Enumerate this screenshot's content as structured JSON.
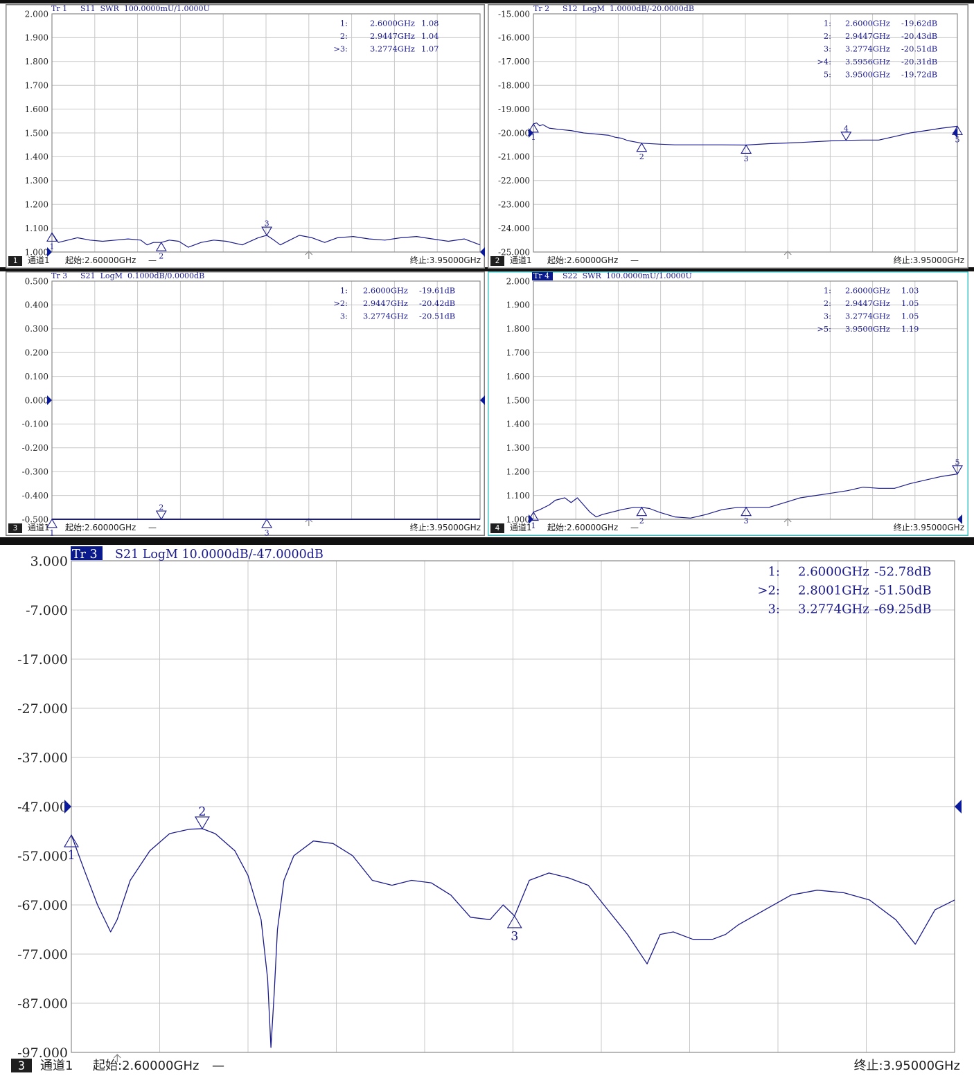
{
  "panels": [
    {
      "id": "p1",
      "trace_tag": "Tr 1",
      "trace_tag_active": false,
      "title": "S11  SWR  100.0000mU/1.0000U",
      "channel_num": "1",
      "channel_label": "通道1",
      "start_label": "起始:2.60000GHz",
      "start_dash": "—",
      "stop_label": "终止:3.95000GHz",
      "frame_color": "#7f7f7f",
      "y_ticks": [
        "2.000",
        "1.900",
        "1.800",
        "1.700",
        "1.600",
        "1.500",
        "1.400",
        "1.300",
        "1.200",
        "1.100",
        "1.000"
      ],
      "marker_table": [
        {
          "label": "1:",
          "freq": "2.6000GHz",
          "value": "1.08"
        },
        {
          "label": "2:",
          "freq": "2.9447GHz",
          "value": "1.04"
        },
        {
          "label": ">3:",
          "freq": "3.2774GHz",
          "value": "1.07"
        }
      ]
    },
    {
      "id": "p2",
      "trace_tag": "Tr 2",
      "trace_tag_active": false,
      "title": "S12  LogM  1.0000dB/-20.0000dB",
      "channel_num": "2",
      "channel_label": "通道1",
      "start_label": "起始:2.60000GHz",
      "start_dash": "—",
      "stop_label": "终止:3.95000GHz",
      "frame_color": "#7f7f7f",
      "y_ticks": [
        "-15.000",
        "-16.000",
        "-17.000",
        "-18.000",
        "-19.000",
        "-20.000",
        "-21.000",
        "-22.000",
        "-23.000",
        "-24.000",
        "-25.000"
      ],
      "marker_table": [
        {
          "label": "1:",
          "freq": "2.6000GHz",
          "value": "-19.62dB"
        },
        {
          "label": "2:",
          "freq": "2.9447GHz",
          "value": "-20.43dB"
        },
        {
          "label": "3:",
          "freq": "3.2774GHz",
          "value": "-20.51dB"
        },
        {
          "label": ">4:",
          "freq": "3.5956GHz",
          "value": "-20.31dB"
        },
        {
          "label": "5:",
          "freq": "3.9500GHz",
          "value": "-19.72dB"
        }
      ]
    },
    {
      "id": "p3",
      "trace_tag": "Tr 3",
      "trace_tag_active": false,
      "title": "S21  LogM  0.1000dB/0.0000dB",
      "channel_num": "3",
      "channel_label": "通道1",
      "start_label": "起始:2.60000GHz",
      "start_dash": "—",
      "stop_label": "终止:3.95000GHz",
      "frame_color": "#7f7f7f",
      "y_ticks": [
        "0.500",
        "0.400",
        "0.300",
        "0.200",
        "0.100",
        "0.000",
        "-0.100",
        "-0.200",
        "-0.300",
        "-0.400",
        "-0.500"
      ],
      "marker_table": [
        {
          "label": "1:",
          "freq": "2.6000GHz",
          "value": "-19.61dB"
        },
        {
          "label": ">2:",
          "freq": "2.9447GHz",
          "value": "-20.42dB"
        },
        {
          "label": "3:",
          "freq": "3.2774GHz",
          "value": "-20.51dB"
        }
      ]
    },
    {
      "id": "p4",
      "trace_tag": "Tr 4",
      "trace_tag_active": true,
      "title": "S22  SWR  100.0000mU/1.0000U",
      "channel_num": "4",
      "channel_label": "通道1",
      "start_label": "起始:2.60000GHz",
      "start_dash": "—",
      "stop_label": "终止:3.95000GHz",
      "frame_color": "#3fbfbf",
      "y_ticks": [
        "2.000",
        "1.900",
        "1.800",
        "1.700",
        "1.600",
        "1.500",
        "1.400",
        "1.300",
        "1.200",
        "1.100",
        "1.000"
      ],
      "marker_table": [
        {
          "label": "1:",
          "freq": "2.6000GHz",
          "value": "1.03"
        },
        {
          "label": "2:",
          "freq": "2.9447GHz",
          "value": "1.05"
        },
        {
          "label": "3:",
          "freq": "3.2774GHz",
          "value": "1.05"
        },
        {
          "label": ">5:",
          "freq": "3.9500GHz",
          "value": "1.19"
        }
      ]
    },
    {
      "id": "p5",
      "trace_tag": "Tr 3",
      "trace_tag_active": true,
      "title": "S21 LogM 10.0000dB/-47.0000dB",
      "channel_num": "3",
      "channel_label": "通道1",
      "start_label": "起始:2.60000GHz",
      "start_dash": "—",
      "stop_label": "终止:3.95000GHz",
      "frame_color": "#ffffff",
      "y_ticks": [
        "3.000",
        "-7.000",
        "-17.000",
        "-27.000",
        "-37.000",
        "-47.000",
        "-57.000",
        "-67.000",
        "-77.000",
        "-87.000",
        "-97.000"
      ],
      "marker_table": [
        {
          "label": "1:",
          "freq": "2.6000GHz",
          "value": "-52.78dB"
        },
        {
          "label": ">2:",
          "freq": "2.8001GHz",
          "value": "-51.50dB"
        },
        {
          "label": "3:",
          "freq": "3.2774GHz",
          "value": "-69.25dB"
        }
      ]
    }
  ],
  "chart_data": [
    {
      "type": "line",
      "panel": "p1",
      "title": "S11  SWR  100.0000mU/1.0000U",
      "xlim": [
        2.6,
        3.95
      ],
      "ylim": [
        1.0,
        2.0
      ],
      "grid": true,
      "x": [
        2.6,
        2.62,
        2.65,
        2.68,
        2.72,
        2.76,
        2.8,
        2.84,
        2.88,
        2.9,
        2.92,
        2.9447,
        2.97,
        3.0,
        3.03,
        3.07,
        3.11,
        3.15,
        3.2,
        3.25,
        3.2774,
        3.3,
        3.32,
        3.35,
        3.38,
        3.42,
        3.46,
        3.5,
        3.55,
        3.6,
        3.65,
        3.7,
        3.75,
        3.8,
        3.85,
        3.9,
        3.93,
        3.95
      ],
      "y": [
        1.08,
        1.04,
        1.05,
        1.06,
        1.05,
        1.045,
        1.05,
        1.055,
        1.05,
        1.03,
        1.04,
        1.04,
        1.05,
        1.045,
        1.02,
        1.04,
        1.05,
        1.045,
        1.03,
        1.06,
        1.07,
        1.05,
        1.03,
        1.05,
        1.07,
        1.06,
        1.04,
        1.06,
        1.065,
        1.055,
        1.05,
        1.06,
        1.065,
        1.055,
        1.045,
        1.055,
        1.04,
        1.03
      ],
      "markers": [
        {
          "name": "1",
          "x": 2.6,
          "y": 1.08
        },
        {
          "name": "2",
          "x": 2.9447,
          "y": 1.04
        },
        {
          "name": "3",
          "x": 3.2774,
          "y": 1.07
        }
      ]
    },
    {
      "type": "line",
      "panel": "p2",
      "title": "S12  LogM  1.0000dB/-20.0000dB",
      "xlim": [
        2.6,
        3.95
      ],
      "ylim": [
        -25.0,
        -15.0
      ],
      "grid": true,
      "x": [
        2.6,
        2.61,
        2.62,
        2.63,
        2.65,
        2.68,
        2.72,
        2.76,
        2.8,
        2.84,
        2.86,
        2.88,
        2.9,
        2.9447,
        3.0,
        3.05,
        3.1,
        3.15,
        3.2,
        3.2774,
        3.35,
        3.45,
        3.55,
        3.5956,
        3.65,
        3.7,
        3.75,
        3.8,
        3.85,
        3.9,
        3.95
      ],
      "y": [
        -19.62,
        -19.58,
        -19.7,
        -19.65,
        -19.8,
        -19.85,
        -19.9,
        -20.0,
        -20.05,
        -20.1,
        -20.18,
        -20.22,
        -20.32,
        -20.43,
        -20.47,
        -20.5,
        -20.5,
        -20.5,
        -20.5,
        -20.51,
        -20.45,
        -20.4,
        -20.33,
        -20.31,
        -20.3,
        -20.3,
        -20.15,
        -20.0,
        -19.9,
        -19.8,
        -19.72
      ],
      "markers": [
        {
          "name": "1",
          "x": 2.6,
          "y": -19.62
        },
        {
          "name": "2",
          "x": 2.9447,
          "y": -20.43
        },
        {
          "name": "3",
          "x": 3.2774,
          "y": -20.51
        },
        {
          "name": "4",
          "x": 3.5956,
          "y": -20.31
        },
        {
          "name": "5",
          "x": 3.95,
          "y": -19.72
        }
      ]
    },
    {
      "type": "line",
      "panel": "p3",
      "title": "S21  LogM  0.1000dB/0.0000dB",
      "xlim": [
        2.6,
        3.95
      ],
      "ylim": [
        -0.5,
        0.5
      ],
      "grid": true,
      "x": [
        2.6,
        3.95
      ],
      "y": [
        -0.5,
        -0.5
      ],
      "markers": [
        {
          "name": "1",
          "x": 2.6,
          "y": -0.5
        },
        {
          "name": "2",
          "x": 2.9447,
          "y": -0.5
        },
        {
          "name": "3",
          "x": 3.2774,
          "y": -0.5
        }
      ]
    },
    {
      "type": "line",
      "panel": "p4",
      "title": "S22  SWR  100.0000mU/1.0000U",
      "xlim": [
        2.6,
        3.95
      ],
      "ylim": [
        1.0,
        2.0
      ],
      "grid": true,
      "x": [
        2.6,
        2.62,
        2.65,
        2.67,
        2.7,
        2.72,
        2.74,
        2.76,
        2.78,
        2.8,
        2.82,
        2.85,
        2.88,
        2.92,
        2.9447,
        2.97,
        3.0,
        3.05,
        3.1,
        3.15,
        3.2,
        3.25,
        3.2774,
        3.35,
        3.4,
        3.45,
        3.5,
        3.55,
        3.6,
        3.65,
        3.7,
        3.75,
        3.8,
        3.85,
        3.9,
        3.95
      ],
      "y": [
        1.03,
        1.04,
        1.06,
        1.08,
        1.09,
        1.07,
        1.09,
        1.06,
        1.03,
        1.01,
        1.02,
        1.03,
        1.04,
        1.05,
        1.05,
        1.045,
        1.03,
        1.01,
        1.005,
        1.02,
        1.04,
        1.05,
        1.05,
        1.05,
        1.07,
        1.09,
        1.1,
        1.11,
        1.12,
        1.135,
        1.13,
        1.13,
        1.15,
        1.165,
        1.18,
        1.19
      ],
      "markers": [
        {
          "name": "1",
          "x": 2.6,
          "y": 1.03
        },
        {
          "name": "2",
          "x": 2.9447,
          "y": 1.05
        },
        {
          "name": "3",
          "x": 3.2774,
          "y": 1.05
        },
        {
          "name": "5",
          "x": 3.95,
          "y": 1.19
        }
      ]
    },
    {
      "type": "line",
      "panel": "p5",
      "title": "S21 LogM 10.0000dB/-47.0000dB",
      "xlim": [
        2.6,
        3.95
      ],
      "ylim": [
        -97.0,
        3.0
      ],
      "grid": true,
      "x": [
        2.6,
        2.62,
        2.64,
        2.66,
        2.67,
        2.69,
        2.72,
        2.75,
        2.78,
        2.8001,
        2.82,
        2.85,
        2.87,
        2.89,
        2.9,
        2.905,
        2.91,
        2.915,
        2.925,
        2.94,
        2.97,
        3.0,
        3.03,
        3.06,
        3.09,
        3.12,
        3.15,
        3.18,
        3.21,
        3.24,
        3.26,
        3.2774,
        3.3,
        3.33,
        3.36,
        3.39,
        3.42,
        3.45,
        3.48,
        3.5,
        3.52,
        3.55,
        3.58,
        3.6,
        3.62,
        3.66,
        3.7,
        3.74,
        3.78,
        3.82,
        3.86,
        3.89,
        3.92,
        3.95
      ],
      "y": [
        -52.78,
        -60,
        -67,
        -72.5,
        -70,
        -62,
        -56,
        -52.5,
        -51.6,
        -51.5,
        -52.5,
        -56,
        -61,
        -70,
        -82,
        -96,
        -85,
        -72,
        -62,
        -57,
        -54,
        -54.5,
        -57,
        -62,
        -63,
        -62,
        -62.5,
        -65,
        -69.5,
        -70,
        -67,
        -69.25,
        -62,
        -60.5,
        -61.5,
        -63,
        -68,
        -73,
        -79,
        -73,
        -72.5,
        -74,
        -74,
        -73,
        -71,
        -68,
        -65,
        -64,
        -64.5,
        -66,
        -70,
        -75,
        -68,
        -66
      ]
    }
  ]
}
